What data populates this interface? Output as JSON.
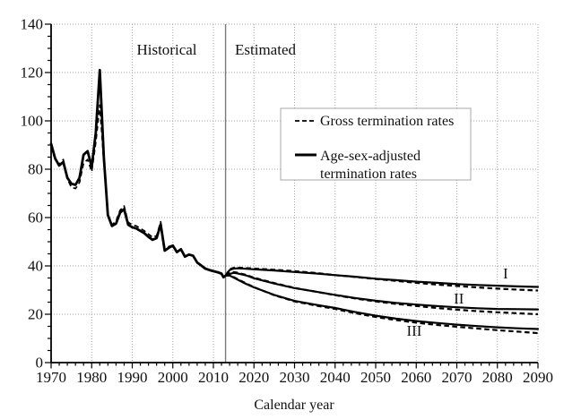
{
  "labels": {
    "historical": "Historical",
    "estimated": "Estimated",
    "xlabel": "Calendar year"
  },
  "legend": {
    "gross": "Gross termination rates",
    "adjusted_line1": "Age-sex-adjusted",
    "adjusted_line2": "termination rates"
  },
  "colors": {
    "line": "#000000",
    "grid": "#a6a6a6",
    "divider": "#7a7a7a",
    "legend_border": "#aaaaaa",
    "background": "#ffffff",
    "axis": "#000000"
  },
  "chart_data": {
    "type": "line",
    "title": "",
    "xlabel": "Calendar year",
    "ylabel": "",
    "xlim": [
      1970,
      2090
    ],
    "ylim": [
      0,
      140
    ],
    "x_ticks": [
      1970,
      1980,
      1990,
      2000,
      2010,
      2020,
      2030,
      2040,
      2050,
      2060,
      2070,
      2080,
      2090
    ],
    "y_ticks": [
      0,
      20,
      40,
      60,
      80,
      100,
      120,
      140
    ],
    "x_minor_step": 2,
    "y_minor_step": 5,
    "grid": true,
    "divider_year": 2013,
    "legend_position": "upper-middle",
    "series": [
      {
        "name": "historical-gross-termination-rates",
        "style": "dashed",
        "width": 1.7,
        "x": [
          1970,
          1971,
          1972,
          1973,
          1974,
          1975,
          1976,
          1977,
          1978,
          1979,
          1980,
          1981,
          1982,
          1983,
          1984,
          1985,
          1986,
          1987,
          1988,
          1989,
          1990,
          1991,
          1992,
          1993,
          1994,
          1995,
          1996,
          1997,
          1998,
          1999,
          2000,
          2001,
          2002,
          2003,
          2004,
          2005,
          2006,
          2007,
          2008,
          2009,
          2010,
          2011,
          2012,
          2012.5,
          2013
        ],
        "y": [
          89,
          84,
          82,
          84,
          76,
          72.5,
          72,
          74.5,
          82.5,
          84,
          79,
          91,
          106.5,
          83,
          61.5,
          57,
          58.5,
          63,
          64.8,
          58,
          57,
          56.5,
          55.5,
          54.5,
          53.2,
          51.8,
          52.5,
          58.3,
          47,
          48,
          48.6,
          45.9,
          47,
          44,
          44.8,
          44.3,
          41.5,
          40.3,
          39,
          38.4,
          37.8,
          37.3,
          36.6,
          35.3,
          36.0
        ]
      },
      {
        "name": "historical-age-sex-adjusted-termination-rates",
        "style": "solid",
        "width": 2.8,
        "x": [
          1970,
          1971,
          1972,
          1973,
          1974,
          1975,
          1976,
          1977,
          1978,
          1979,
          1980,
          1981,
          1982,
          1983,
          1984,
          1985,
          1986,
          1987,
          1988,
          1989,
          1990,
          1991,
          1992,
          1993,
          1994,
          1995,
          1996,
          1997,
          1998,
          1999,
          2000,
          2001,
          2002,
          2003,
          2004,
          2005,
          2006,
          2007,
          2008,
          2009,
          2010,
          2011,
          2012,
          2012.5,
          2013
        ],
        "y": [
          90.5,
          84.5,
          81.5,
          83,
          76.5,
          74,
          73.5,
          76.5,
          86,
          87.5,
          81,
          95,
          121,
          85,
          61,
          56.5,
          57.5,
          62,
          63.5,
          57,
          56,
          55.5,
          54.5,
          53.5,
          52,
          50.8,
          51.5,
          57.2,
          46.3,
          47.5,
          48.4,
          45.7,
          46.9,
          43.8,
          44.7,
          44.2,
          41.4,
          40.2,
          38.9,
          38.3,
          37.8,
          37.4,
          36.8,
          35.3,
          36.0
        ]
      },
      {
        "name": "scenario-I-gross-termination-rates",
        "style": "dashed",
        "width": 2.2,
        "x": [
          2013,
          2014,
          2015,
          2016,
          2018,
          2020,
          2025,
          2030,
          2035,
          2040,
          2045,
          2050,
          2055,
          2060,
          2065,
          2070,
          2075,
          2080,
          2085,
          2090
        ],
        "y": [
          36.0,
          38.6,
          39.2,
          39.3,
          39.1,
          38.9,
          38.4,
          37.8,
          37.1,
          36.2,
          35.4,
          34.6,
          33.8,
          33.0,
          32.3,
          31.7,
          31.1,
          30.6,
          30.2,
          29.8
        ]
      },
      {
        "name": "scenario-I-age-sex-adjusted-termination-rates",
        "style": "solid",
        "width": 2.2,
        "x": [
          2013,
          2014,
          2015,
          2016,
          2018,
          2020,
          2025,
          2030,
          2035,
          2040,
          2045,
          2050,
          2055,
          2060,
          2065,
          2070,
          2075,
          2080,
          2085,
          2090
        ],
        "y": [
          36.0,
          38.3,
          38.9,
          39.0,
          38.8,
          38.6,
          38.1,
          37.5,
          36.9,
          36.2,
          35.5,
          34.7,
          34.1,
          33.5,
          33.0,
          32.5,
          32.1,
          31.8,
          31.5,
          31.3
        ]
      },
      {
        "name": "scenario-II-gross-termination-rates",
        "style": "dashed",
        "width": 2.2,
        "x": [
          2013,
          2014,
          2015,
          2016,
          2018,
          2020,
          2025,
          2030,
          2035,
          2040,
          2045,
          2050,
          2055,
          2060,
          2065,
          2070,
          2075,
          2080,
          2085,
          2090
        ],
        "y": [
          36.0,
          37.0,
          37.4,
          37.2,
          36.3,
          35.1,
          32.9,
          30.9,
          29.4,
          27.9,
          26.5,
          25.3,
          24.3,
          23.4,
          22.6,
          21.9,
          21.3,
          20.8,
          20.4,
          20.0
        ]
      },
      {
        "name": "scenario-II-age-sex-adjusted-termination-rates",
        "style": "solid",
        "width": 2.2,
        "x": [
          2013,
          2014,
          2015,
          2016,
          2018,
          2020,
          2025,
          2030,
          2035,
          2040,
          2045,
          2050,
          2055,
          2060,
          2065,
          2070,
          2075,
          2080,
          2085,
          2090
        ],
        "y": [
          36.0,
          36.7,
          37.1,
          36.9,
          36.1,
          34.9,
          32.7,
          30.8,
          29.4,
          28.0,
          26.7,
          25.6,
          24.7,
          24.0,
          23.4,
          22.9,
          22.5,
          22.2,
          22.1,
          22.0
        ]
      },
      {
        "name": "scenario-III-gross-termination-rates",
        "style": "dashed",
        "width": 2.2,
        "x": [
          2013,
          2014,
          2015,
          2016,
          2018,
          2020,
          2025,
          2030,
          2035,
          2040,
          2045,
          2050,
          2055,
          2060,
          2065,
          2070,
          2075,
          2080,
          2085,
          2090
        ],
        "y": [
          36.0,
          36.2,
          35.4,
          34.5,
          32.8,
          31.2,
          27.9,
          25.3,
          23.7,
          22.2,
          20.4,
          18.9,
          17.6,
          16.5,
          15.6,
          14.8,
          14.1,
          13.4,
          12.8,
          12.2
        ]
      },
      {
        "name": "scenario-III-age-sex-adjusted-termination-rates",
        "style": "solid",
        "width": 2.2,
        "x": [
          2013,
          2014,
          2015,
          2016,
          2018,
          2020,
          2025,
          2030,
          2035,
          2040,
          2045,
          2050,
          2055,
          2060,
          2065,
          2070,
          2075,
          2080,
          2085,
          2090
        ],
        "y": [
          36.0,
          36.0,
          35.2,
          34.3,
          32.6,
          31.1,
          28.0,
          25.5,
          24.0,
          22.6,
          20.9,
          19.4,
          18.2,
          17.2,
          16.4,
          15.7,
          15.1,
          14.6,
          14.2,
          13.9
        ]
      }
    ],
    "annotations": [
      {
        "label": "I",
        "x": 2082,
        "y": 37.0
      },
      {
        "label": "II",
        "x": 2070.5,
        "y": 26.7
      },
      {
        "label": "III",
        "x": 2059.5,
        "y": 13.3
      }
    ]
  }
}
